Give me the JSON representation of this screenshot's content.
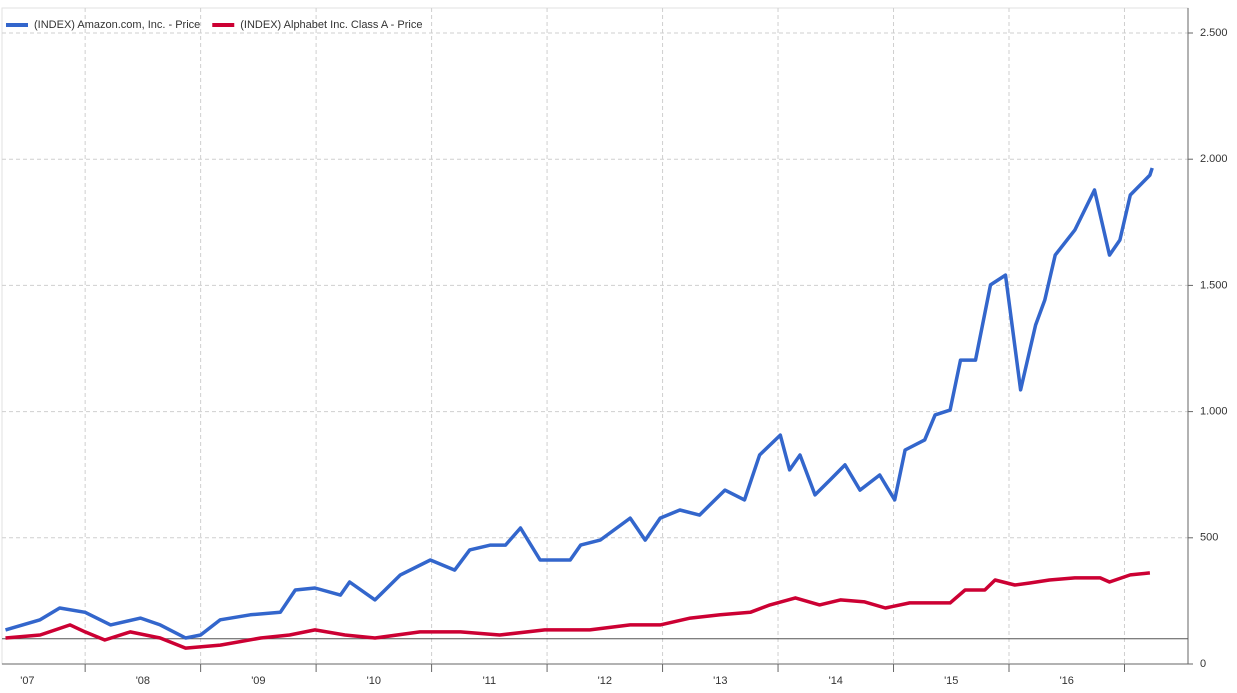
{
  "chart_data": {
    "type": "line",
    "series": [
      {
        "name": "(INDEX) Amazon.com, Inc. - Price",
        "color": "#3366cc",
        "x": [
          2007.31,
          2007.61,
          2007.78,
          2008.0,
          2008.22,
          2008.48,
          2008.65,
          2008.87,
          2009.0,
          2009.17,
          2009.43,
          2009.69,
          2009.82,
          2009.99,
          2010.21,
          2010.29,
          2010.51,
          2010.73,
          2010.99,
          2011.2,
          2011.33,
          2011.51,
          2011.64,
          2011.77,
          2011.94,
          2012.2,
          2012.29,
          2012.46,
          2012.72,
          2012.85,
          2012.98,
          2013.15,
          2013.32,
          2013.54,
          2013.71,
          2013.84,
          2014.02,
          2014.1,
          2014.19,
          2014.32,
          2014.45,
          2014.58,
          2014.71,
          2014.88,
          2015.01,
          2015.1,
          2015.27,
          2015.36,
          2015.49,
          2015.58,
          2015.71,
          2015.84,
          2015.97,
          2016.1,
          2016.23,
          2016.31,
          2016.4,
          2016.57,
          2016.74,
          2016.87,
          2016.96,
          2017.05,
          2017.22,
          2017.24
        ],
        "values": [
          135,
          175,
          222,
          205,
          155,
          182,
          155,
          103,
          115,
          175,
          195,
          205,
          293,
          301,
          273,
          325,
          254,
          353,
          412,
          372,
          452,
          471,
          471,
          539,
          412,
          412,
          471,
          491,
          578,
          491,
          578,
          610,
          590,
          689,
          650,
          828,
          907,
          769,
          828,
          670,
          729,
          789,
          689,
          749,
          650,
          848,
          888,
          987,
          1006,
          1204,
          1204,
          1502,
          1541,
          1086,
          1343,
          1442,
          1620,
          1719,
          1878,
          1620,
          1680,
          1858,
          1937,
          1965
        ]
      },
      {
        "name": "(INDEX) Alphabet Inc. Class A - Price",
        "color": "#cc0033",
        "x": [
          2007.31,
          2007.61,
          2007.87,
          2008.0,
          2008.17,
          2008.39,
          2008.65,
          2008.87,
          2009.17,
          2009.52,
          2009.77,
          2009.99,
          2010.25,
          2010.51,
          2010.9,
          2011.25,
          2011.59,
          2011.98,
          2012.37,
          2012.72,
          2012.98,
          2013.24,
          2013.5,
          2013.76,
          2013.93,
          2014.15,
          2014.36,
          2014.54,
          2014.75,
          2014.93,
          2015.14,
          2015.49,
          2015.62,
          2015.79,
          2015.88,
          2016.05,
          2016.18,
          2016.35,
          2016.57,
          2016.79,
          2016.87,
          2017.05,
          2017.22
        ],
        "values": [
          103,
          115,
          155,
          127,
          95,
          127,
          103,
          63,
          75,
          103,
          115,
          135,
          115,
          103,
          127,
          127,
          115,
          135,
          135,
          155,
          155,
          182,
          195,
          205,
          234,
          262,
          234,
          254,
          246,
          222,
          242,
          242,
          293,
          293,
          333,
          313,
          321,
          333,
          341,
          341,
          325,
          353,
          361
        ]
      }
    ],
    "xlim": [
      2007.28,
      2017.55
    ],
    "xticks": [
      {
        "value": 2007.5,
        "label": "'07"
      },
      {
        "value": 2008.5,
        "label": "'08"
      },
      {
        "value": 2009.5,
        "label": "'09"
      },
      {
        "value": 2010.5,
        "label": "'10"
      },
      {
        "value": 2011.5,
        "label": "'11"
      },
      {
        "value": 2012.5,
        "label": "'12"
      },
      {
        "value": 2013.5,
        "label": "'13"
      },
      {
        "value": 2014.5,
        "label": "'14"
      },
      {
        "value": 2015.5,
        "label": "'15"
      },
      {
        "value": 2016.5,
        "label": "'16"
      }
    ],
    "ylim": [
      0,
      2500
    ],
    "yticks": [
      0,
      500,
      {
        "value": 1000,
        "label": "1.000"
      },
      {
        "value": 1500,
        "label": "1.500"
      },
      {
        "value": 2000,
        "label": "2.000"
      },
      {
        "value": 2500,
        "label": "2.500"
      }
    ],
    "reference_line": 100,
    "grid": true,
    "legend": "top-left"
  }
}
